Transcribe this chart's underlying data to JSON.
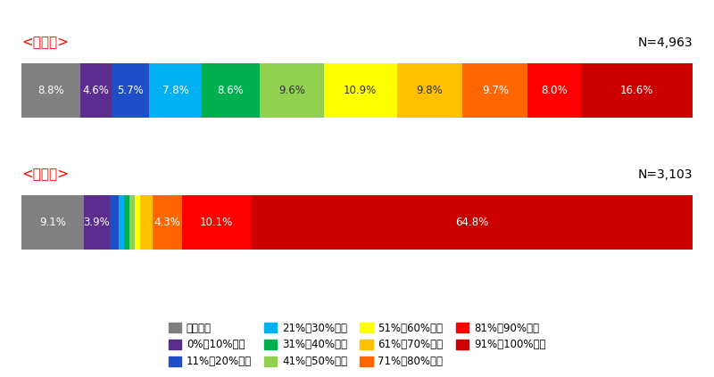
{
  "bar1_title": "<宿泊業>",
  "bar1_n": "N=4,963",
  "bar1_values": [
    8.8,
    4.6,
    5.7,
    7.8,
    8.6,
    9.6,
    10.9,
    9.8,
    9.7,
    8.0,
    16.6
  ],
  "bar2_title": "<旅行業>",
  "bar2_n": "N=3,103",
  "bar2_values": [
    9.1,
    3.9,
    1.2,
    0.8,
    0.8,
    0.8,
    0.8,
    1.8,
    4.3,
    10.1,
    64.8
  ],
  "colors": [
    "#808080",
    "#5b2d8e",
    "#1f4fc8",
    "#00b0f0",
    "#00b050",
    "#92d050",
    "#ffff00",
    "#ffc000",
    "#ff6600",
    "#ff0000",
    "#cc0000"
  ],
  "legend_labels": [
    "減少せず",
    "0%～10%減少",
    "11%～20%減少",
    "21%～30%減少",
    "31%～40%減少",
    "41%～50%減少",
    "51%～60%減少",
    "61%～70%減少",
    "71%～80%減少",
    "81%～90%減少",
    "91%～100%減少"
  ],
  "title_color": "#ff0000",
  "background_color": "#ffffff",
  "label_threshold": 2.5
}
